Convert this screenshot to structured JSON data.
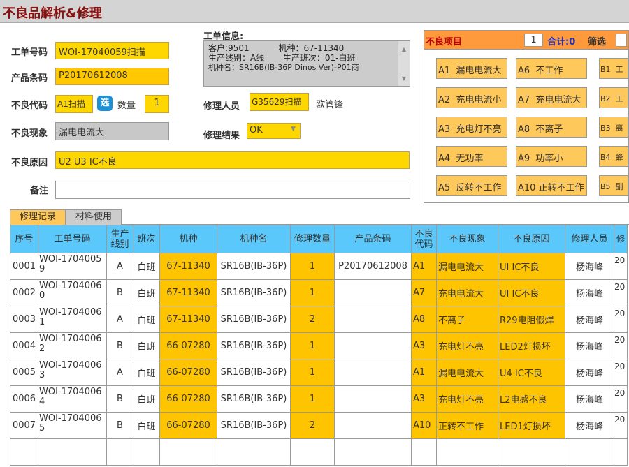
{
  "title": "不良品解析&修理",
  "form": {
    "work_order_label": "工单号码",
    "work_order": "WOI-17040059扫描",
    "barcode_label": "产品条码",
    "barcode": "P20170612008",
    "defect_code_label": "不良代码",
    "defect_code": "A1扫描",
    "select_btn": "选",
    "qty_label": "数量",
    "qty": "1",
    "phenomenon_label": "不良现象",
    "phenomenon": "漏电电流大",
    "cause_label": "不良原因",
    "cause": "U2 U3 IC不良",
    "remark_label": "备注",
    "remark": "",
    "info_label": "工单信息:",
    "info_lines": [
      "客户:9501           机种：67-11340",
      "生产线别：A线       生产班次：01-白班",
      "机种名：SR16B(IB-36P Dinos Ver)-P01商"
    ],
    "repairer_label": "修理人员",
    "repairer": "G35629扫描",
    "repairer_name": "欧管锋",
    "result_label": "修理结果",
    "result": "OK"
  },
  "defect_panel": {
    "title": "不良项目",
    "page": "1",
    "total": "合计:0",
    "filter_label": "筛选",
    "items": [
      "A1  漏电电流大",
      "A6  不工作",
      "B1  工",
      "A2  充电电流小",
      "A7  充电电流大",
      "B2  工",
      "A3  充电灯不亮",
      "A8  不离子",
      "B3  离",
      "A4  无功率",
      "A9  功率小",
      "B4  蜂",
      "A5  反转不工作",
      "A10 正转不工作",
      "B5  副"
    ]
  },
  "tabs": [
    "修理记录",
    "材料使用"
  ],
  "table": {
    "headers": [
      "序号",
      "工单号码",
      "生产线别",
      "班次",
      "机种",
      "机种名",
      "修理数量",
      "产品条码",
      "不良代码",
      "不良现象",
      "不良原因",
      "修理人员",
      "修"
    ],
    "rows": [
      [
        "0001",
        "WOI-17040059",
        "A",
        "白班",
        "67-11340",
        "SR16B(IB-36P)",
        "1",
        "P20170612008",
        "A1",
        "漏电电流大",
        "UI IC不良",
        "杨海峰",
        "20"
      ],
      [
        "0002",
        "WOI-17040060",
        "B",
        "白班",
        "67-11340",
        "SR16B(IB-36P)",
        "1",
        "",
        "A7",
        "充电电流大",
        "UI IC不良",
        "杨海峰",
        "20"
      ],
      [
        "0003",
        "WOI-17040061",
        "A",
        "白班",
        "67-11340",
        "SR16B(IB-36P)",
        "2",
        "",
        "A8",
        "不离子",
        "R29电阻假焊",
        "杨海峰",
        "20"
      ],
      [
        "0004",
        "WOI-17040062",
        "B",
        "白班",
        "66-07280",
        "SR16B(IB-36P)",
        "1",
        "",
        "A3",
        "充电灯不亮",
        "LED2灯损坏",
        "杨海峰",
        "20"
      ],
      [
        "0005",
        "WOI-17040063",
        "A",
        "白班",
        "66-07280",
        "SR16B(IB-36P)",
        "1",
        "",
        "A1",
        "漏电电流大",
        "U4 IC不良",
        "杨海峰",
        "20"
      ],
      [
        "0006",
        "WOI-17040064",
        "B",
        "白班",
        "66-07280",
        "SR16B(IB-36P)",
        "1",
        "",
        "A3",
        "充电灯不亮",
        "L2电感不良",
        "杨海峰",
        "20"
      ],
      [
        "0007",
        "WOI-17040065",
        "B",
        "白班",
        "66-07280",
        "SR16B(IB-36P)",
        "2",
        "",
        "A10",
        "正转不工作",
        "LED1灯损坏",
        "杨海峰",
        "20"
      ],
      [
        "",
        "",
        "",
        "",
        "",
        "",
        "",
        "",
        "",
        "",
        "",
        "",
        ""
      ]
    ]
  }
}
